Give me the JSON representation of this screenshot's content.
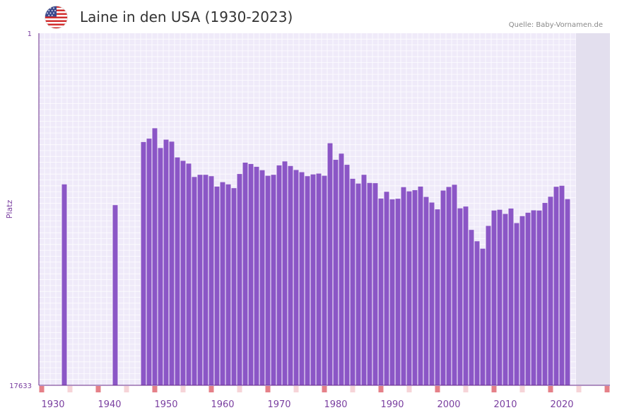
{
  "title": "Laine in den USA (1930-2023)",
  "source": "Quelle: Baby-Vornamen.de",
  "colors": {
    "bar": "#8b56c6",
    "axis": "#6a2c8a",
    "grid_bg": "#efeaf9",
    "grid_line": "#ffffff",
    "future": "#e3dfee",
    "tick": "#e58088",
    "tick_light": "#f6d4d8",
    "label": "#7a3fa0"
  },
  "chart_data": {
    "type": "bar",
    "title": "Laine in den USA (1930-2023)",
    "ylabel": "Platz",
    "xlabel": "",
    "ylim": [
      17633,
      1
    ],
    "y_ticks": [
      1,
      17633
    ],
    "x_range": [
      1928,
      2029
    ],
    "x_ticks": [
      1930,
      1940,
      1950,
      1960,
      1970,
      1980,
      1990,
      2000,
      2010,
      2020
    ],
    "future_from": 2023,
    "x": [
      1932,
      1941,
      1946,
      1947,
      1948,
      1949,
      1950,
      1951,
      1952,
      1953,
      1954,
      1955,
      1956,
      1957,
      1958,
      1959,
      1960,
      1961,
      1962,
      1963,
      1964,
      1965,
      1966,
      1967,
      1968,
      1969,
      1970,
      1971,
      1972,
      1973,
      1974,
      1975,
      1976,
      1977,
      1978,
      1979,
      1980,
      1981,
      1982,
      1983,
      1984,
      1985,
      1986,
      1987,
      1988,
      1989,
      1990,
      1991,
      1992,
      1993,
      1994,
      1995,
      1996,
      1997,
      1998,
      1999,
      2000,
      2001,
      2002,
      2003,
      2004,
      2005,
      2006,
      2007,
      2008,
      2009,
      2010,
      2011,
      2012,
      2013,
      2014,
      2015,
      2016,
      2017,
      2018,
      2019,
      2020,
      2021
    ],
    "values": [
      7570,
      8610,
      5450,
      5280,
      4760,
      5750,
      5330,
      5430,
      6220,
      6390,
      6530,
      7200,
      7090,
      7090,
      7160,
      7680,
      7460,
      7570,
      7760,
      7050,
      6480,
      6550,
      6690,
      6860,
      7140,
      7090,
      6620,
      6420,
      6650,
      6850,
      6960,
      7160,
      7070,
      7030,
      7140,
      5510,
      6340,
      6030,
      6590,
      7290,
      7530,
      7090,
      7500,
      7510,
      8280,
      7940,
      8320,
      8290,
      7710,
      7920,
      7860,
      7680,
      8200,
      8480,
      8820,
      7880,
      7700,
      7590,
      8770,
      8680,
      9850,
      10420,
      10790,
      9650,
      8880,
      8840,
      9050,
      8780,
      9510,
      9160,
      8990,
      8870,
      8880,
      8500,
      8190,
      7690,
      7640,
      8310
    ]
  }
}
